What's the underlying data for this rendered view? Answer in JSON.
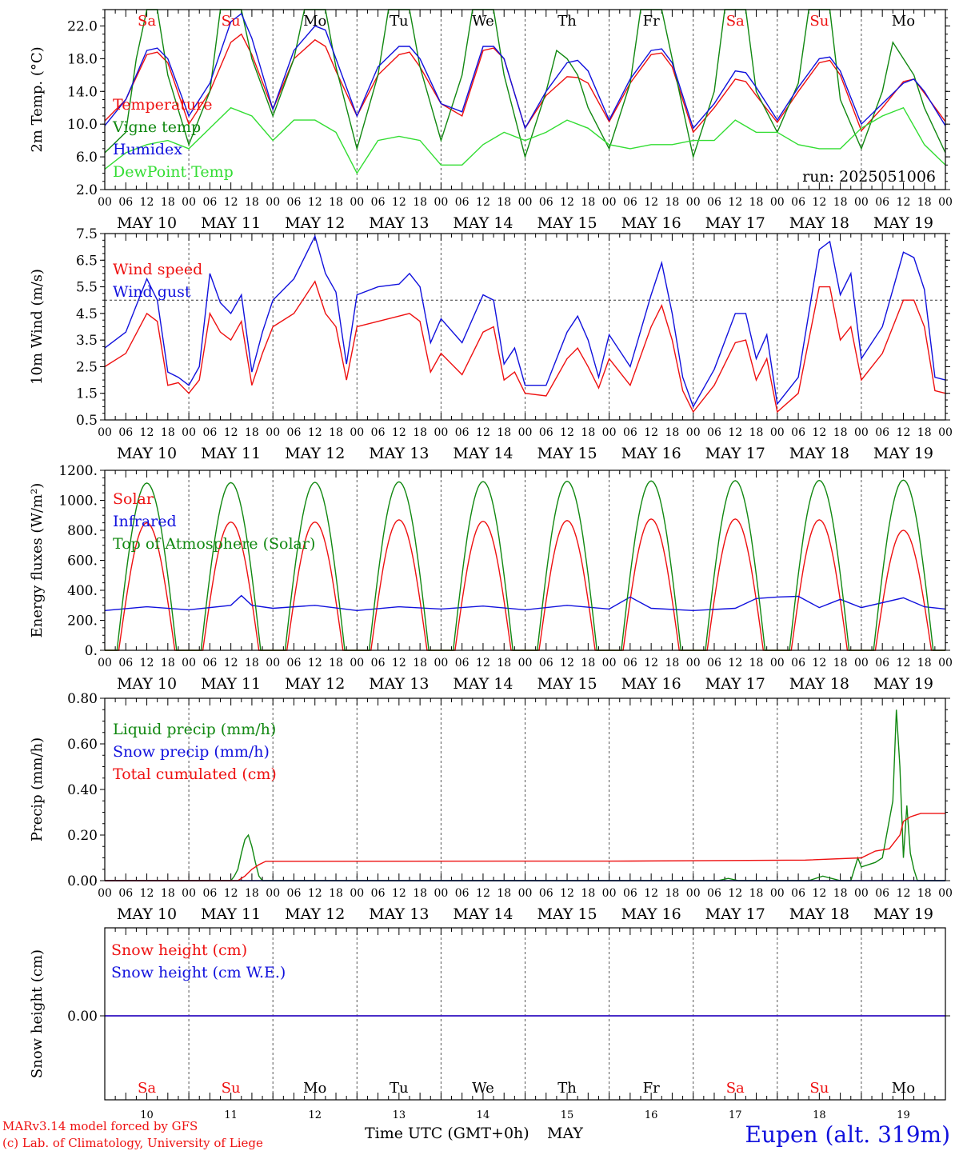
{
  "footer": {
    "model_line": "MARv3.14 model forced by GFS",
    "credit_line": "(c) Lab. of Climatology, University of Liege",
    "location": "Eupen (alt. 319m)",
    "time_axis_label": "Time UTC (GMT+0h)",
    "month_label": "MAY"
  },
  "colors": {
    "red": "#ee1111",
    "green": "#118811",
    "blue": "#1111dd",
    "lightgreen": "#33dd33",
    "black": "#000000"
  },
  "chart_data": [
    {
      "id": "temperature",
      "type": "line",
      "ylabel": "2m Temp. (°C)",
      "ylim": [
        2.0,
        24.0
      ],
      "yticks": [
        2.0,
        6.0,
        10.0,
        14.0,
        18.0,
        22.0
      ],
      "yticklabels": [
        "2.0",
        "6.0",
        "10.0",
        "14.0",
        "18.0",
        "22.0"
      ],
      "annotation": "run: 2025051006",
      "day_names": [
        "Sa",
        "Su",
        "Mo",
        "Tu",
        "We",
        "Th",
        "Fr",
        "Sa",
        "Su",
        "Mo"
      ],
      "series": [
        {
          "name": "Temperature",
          "color": "#ee1111",
          "x": [
            0,
            6,
            12,
            15,
            18,
            24,
            30,
            36,
            39,
            42,
            48,
            54,
            60,
            63,
            66,
            72,
            78,
            84,
            87,
            90,
            96,
            102,
            108,
            111,
            114,
            120,
            126,
            132,
            135,
            138,
            144,
            150,
            156,
            159,
            162,
            168,
            174,
            180,
            183,
            186,
            192,
            198,
            204,
            207,
            210,
            216,
            222,
            228,
            231,
            234,
            240
          ],
          "values": [
            10.4,
            13,
            18.5,
            18.8,
            17.5,
            10,
            14,
            20,
            21,
            18.5,
            11.8,
            18,
            20.3,
            19.5,
            16.5,
            11,
            16,
            18.5,
            18.8,
            17,
            12.5,
            11,
            19,
            19.3,
            18,
            9.5,
            13.5,
            15.8,
            15.7,
            15,
            10.3,
            15,
            18.5,
            18.7,
            17,
            9,
            12,
            15.5,
            15.2,
            13.5,
            10.2,
            14,
            17.5,
            17.8,
            16,
            9.2,
            12,
            15.2,
            15.5,
            13.8,
            10.3
          ]
        },
        {
          "name": "Vigne temp",
          "color": "#118811",
          "x": [
            0,
            6,
            9,
            12,
            15,
            18,
            24,
            30,
            33,
            36,
            39,
            42,
            48,
            54,
            57,
            60,
            63,
            66,
            72,
            78,
            81,
            84,
            87,
            90,
            96,
            102,
            105,
            108,
            111,
            114,
            120,
            126,
            129,
            132,
            135,
            138,
            144,
            150,
            153,
            156,
            159,
            162,
            168,
            174,
            177,
            180,
            183,
            186,
            192,
            198,
            201,
            204,
            207,
            210,
            216,
            222,
            225,
            228,
            231,
            234,
            240
          ],
          "values": [
            6.5,
            9,
            18,
            24,
            24,
            16,
            7.5,
            14,
            24,
            24,
            24,
            18,
            11,
            18,
            24,
            24,
            24,
            17,
            7,
            16,
            24,
            24,
            24,
            17,
            8,
            16,
            24,
            24,
            24,
            16,
            6,
            14,
            19,
            18,
            16,
            12,
            7,
            15,
            24,
            24,
            24,
            18,
            6,
            14,
            24,
            24,
            24,
            14,
            9,
            15,
            24,
            24,
            24,
            13,
            7,
            14,
            20,
            18,
            16,
            12,
            6.5
          ]
        },
        {
          "name": "Humidex",
          "color": "#1111dd",
          "x": [
            0,
            6,
            12,
            15,
            18,
            24,
            30,
            36,
            39,
            42,
            48,
            54,
            60,
            63,
            66,
            72,
            78,
            84,
            87,
            90,
            96,
            102,
            108,
            111,
            114,
            120,
            126,
            132,
            135,
            138,
            144,
            150,
            156,
            159,
            162,
            168,
            174,
            180,
            183,
            186,
            192,
            198,
            204,
            207,
            210,
            216,
            222,
            228,
            231,
            234,
            240
          ],
          "values": [
            9.8,
            13,
            19,
            19.3,
            18,
            11,
            15,
            22.5,
            23.5,
            20.5,
            11.8,
            19,
            22,
            21.5,
            18,
            11,
            17,
            19.5,
            19.5,
            18,
            12.5,
            11.5,
            19.5,
            19.5,
            18,
            9.5,
            14,
            17.5,
            17.8,
            16.5,
            10.5,
            15.5,
            19,
            19.2,
            17.5,
            9.5,
            12.5,
            16.5,
            16.3,
            14.5,
            10.5,
            14.5,
            18,
            18.2,
            16.5,
            10,
            12.5,
            15,
            15.5,
            14,
            9.8
          ]
        },
        {
          "name": "DewPoint Temp",
          "color": "#33dd33",
          "x": [
            0,
            6,
            12,
            18,
            24,
            30,
            36,
            42,
            48,
            54,
            60,
            66,
            72,
            78,
            84,
            90,
            96,
            102,
            108,
            114,
            120,
            126,
            132,
            138,
            144,
            150,
            156,
            162,
            168,
            174,
            180,
            186,
            192,
            198,
            204,
            210,
            216,
            222,
            228,
            234,
            240
          ],
          "values": [
            4.5,
            6.5,
            7.5,
            8,
            7,
            9.5,
            12,
            11,
            8,
            10.5,
            10.5,
            9,
            4,
            8,
            8.5,
            8,
            5,
            5,
            7.5,
            9,
            8,
            9,
            10.5,
            9.5,
            7.5,
            7,
            7.5,
            7.5,
            8,
            8,
            10.5,
            9,
            9,
            7.5,
            7,
            7,
            9.5,
            11,
            12,
            7.5,
            5
          ]
        }
      ]
    },
    {
      "id": "wind",
      "type": "line",
      "ylabel": "10m Wind (m/s)",
      "ylim": [
        0.5,
        7.5
      ],
      "yticks": [
        0.5,
        1.5,
        2.5,
        3.5,
        4.5,
        5.5,
        6.5,
        7.5
      ],
      "yticklabels": [
        "0.5",
        "1.5",
        "2.5",
        "3.5",
        "4.5",
        "5.5",
        "6.5",
        "7.5"
      ],
      "reference_line": 5.0,
      "series": [
        {
          "name": "Wind speed",
          "color": "#ee1111",
          "x": [
            0,
            6,
            12,
            15,
            18,
            21,
            24,
            27,
            30,
            33,
            36,
            39,
            42,
            45,
            48,
            54,
            60,
            63,
            66,
            69,
            72,
            78,
            84,
            87,
            90,
            93,
            96,
            102,
            108,
            111,
            114,
            117,
            120,
            126,
            132,
            135,
            138,
            141,
            144,
            150,
            156,
            159,
            162,
            165,
            168,
            174,
            180,
            183,
            186,
            189,
            192,
            198,
            204,
            207,
            210,
            213,
            216,
            222,
            228,
            231,
            234,
            237,
            240
          ],
          "values": [
            2.5,
            3.0,
            4.5,
            4.2,
            1.8,
            1.9,
            1.5,
            2.0,
            4.5,
            3.8,
            3.5,
            4.2,
            1.8,
            3.0,
            4.0,
            4.5,
            5.7,
            4.5,
            4.0,
            2.0,
            4.0,
            4.2,
            4.4,
            4.5,
            4.2,
            2.3,
            3.0,
            2.2,
            3.8,
            4.0,
            2.0,
            2.3,
            1.5,
            1.4,
            2.8,
            3.2,
            2.5,
            1.7,
            2.8,
            1.8,
            4.0,
            4.8,
            3.5,
            1.6,
            0.8,
            1.8,
            3.4,
            3.5,
            2.0,
            2.8,
            0.8,
            1.5,
            5.5,
            5.5,
            3.5,
            4.0,
            2.0,
            3.0,
            5.0,
            5.0,
            4.0,
            1.6,
            1.5
          ]
        },
        {
          "name": "Wind gust",
          "color": "#1111dd",
          "x": [
            0,
            6,
            12,
            15,
            18,
            21,
            24,
            27,
            30,
            33,
            36,
            39,
            42,
            45,
            48,
            54,
            60,
            63,
            66,
            69,
            72,
            78,
            84,
            87,
            90,
            93,
            96,
            102,
            108,
            111,
            114,
            117,
            120,
            126,
            132,
            135,
            138,
            141,
            144,
            150,
            156,
            159,
            162,
            165,
            168,
            174,
            180,
            183,
            186,
            189,
            192,
            198,
            204,
            207,
            210,
            213,
            216,
            222,
            228,
            231,
            234,
            237,
            240
          ],
          "values": [
            3.2,
            3.8,
            5.8,
            5.0,
            2.3,
            2.1,
            1.8,
            2.5,
            6.0,
            4.9,
            4.5,
            5.2,
            2.3,
            3.8,
            5.0,
            5.8,
            7.4,
            6.0,
            5.3,
            2.6,
            5.2,
            5.5,
            5.6,
            6.0,
            5.5,
            3.4,
            4.3,
            3.4,
            5.2,
            5.0,
            2.6,
            3.2,
            1.8,
            1.8,
            3.8,
            4.4,
            3.5,
            2.1,
            3.7,
            2.5,
            5.2,
            6.4,
            4.5,
            2.1,
            1.0,
            2.4,
            4.5,
            4.5,
            2.8,
            3.7,
            1.1,
            2.1,
            6.9,
            7.2,
            5.2,
            6.0,
            2.8,
            4.0,
            6.8,
            6.6,
            5.4,
            2.1,
            2.0
          ]
        }
      ]
    },
    {
      "id": "energy",
      "type": "line",
      "ylabel": "Energy fluxes (W/m²)",
      "ylim": [
        0,
        1200
      ],
      "yticks": [
        0,
        200,
        400,
        600,
        800,
        1000,
        1200
      ],
      "yticklabels": [
        "0.",
        "200.",
        "400.",
        "600.",
        "800.",
        "1000.",
        "1200."
      ],
      "series": [
        {
          "name": "Solar",
          "color": "#ee1111",
          "peak_hour_utc": 12,
          "daily_peak": [
            850,
            855,
            855,
            870,
            860,
            865,
            875,
            875,
            870,
            800
          ],
          "sunrise_hour": 4,
          "sunset_hour": 20
        },
        {
          "name": "Infrared",
          "color": "#1111dd",
          "x": [
            0,
            12,
            24,
            36,
            39,
            42,
            48,
            60,
            72,
            84,
            96,
            108,
            120,
            132,
            144,
            150,
            156,
            168,
            180,
            186,
            192,
            198,
            204,
            210,
            216,
            228,
            234,
            240
          ],
          "values": [
            265,
            290,
            270,
            300,
            365,
            300,
            280,
            300,
            265,
            290,
            275,
            295,
            270,
            300,
            275,
            355,
            280,
            265,
            280,
            345,
            355,
            360,
            285,
            340,
            285,
            350,
            290,
            275
          ]
        },
        {
          "name": "Top of Atmosphere (Solar)",
          "color": "#118811",
          "peak_hour_utc": 12,
          "daily_peak": [
            1115,
            1118,
            1120,
            1123,
            1125,
            1127,
            1129,
            1131,
            1133,
            1135
          ],
          "sunrise_hour": 3.5,
          "sunset_hour": 20.5
        }
      ]
    },
    {
      "id": "precip",
      "type": "line",
      "ylabel": "Precip (mm/h)",
      "ylim": [
        0.0,
        0.8
      ],
      "yticks": [
        0.0,
        0.2,
        0.4,
        0.6,
        0.8
      ],
      "yticklabels": [
        "0.00",
        "0.20",
        "0.40",
        "0.60",
        "0.80"
      ],
      "series": [
        {
          "name": "Liquid precip (mm/h)",
          "color": "#118811",
          "x": [
            0,
            36,
            37,
            38,
            39,
            40,
            41,
            42,
            43,
            44,
            45,
            150,
            175,
            178,
            181,
            182,
            201,
            205,
            210,
            213,
            215,
            216,
            220,
            222,
            225,
            226,
            227,
            228,
            229,
            230,
            231,
            232,
            235,
            240
          ],
          "values": [
            0,
            0,
            0.02,
            0.05,
            0.12,
            0.18,
            0.2,
            0.15,
            0.08,
            0.02,
            0,
            0,
            0,
            0.01,
            0,
            0,
            0,
            0.02,
            0,
            0,
            0.1,
            0.06,
            0.08,
            0.1,
            0.35,
            0.75,
            0.5,
            0.1,
            0.33,
            0.12,
            0.05,
            0,
            0,
            0
          ]
        },
        {
          "name": "Snow precip (mm/h)",
          "color": "#1111dd",
          "x": [
            0,
            240
          ],
          "values": [
            0,
            0
          ]
        },
        {
          "name": "Total cumulated (cm)",
          "color": "#ee1111",
          "x": [
            0,
            38,
            40,
            42,
            44,
            46,
            48,
            150,
            200,
            216,
            220,
            224,
            227,
            228,
            230,
            233,
            240
          ],
          "values": [
            0,
            0,
            0.02,
            0.05,
            0.07,
            0.085,
            0.085,
            0.086,
            0.09,
            0.1,
            0.13,
            0.14,
            0.2,
            0.26,
            0.28,
            0.295,
            0.295
          ]
        }
      ]
    },
    {
      "id": "snow",
      "type": "line",
      "ylabel": "Snow height (cm)",
      "yticks": [
        0.0
      ],
      "yticklabels": [
        "0.00"
      ],
      "series": [
        {
          "name": "Snow height (cm)",
          "color": "#ee1111",
          "x": [
            0,
            240
          ],
          "values": [
            0,
            0
          ]
        },
        {
          "name": "Snow height (cm W.E.)",
          "color": "#1111dd",
          "x": [
            0,
            240
          ],
          "values": [
            0,
            0
          ]
        }
      ]
    }
  ],
  "x_axis": {
    "hour_labels": [
      "00",
      "06",
      "12",
      "18"
    ],
    "last_hour_label": "00",
    "dates": [
      "MAY 10",
      "MAY 11",
      "MAY 12",
      "MAY 13",
      "MAY 14",
      "MAY 15",
      "MAY 16",
      "MAY 17",
      "MAY 18",
      "MAY 19"
    ],
    "day_numbers": [
      "10",
      "11",
      "12",
      "13",
      "14",
      "15",
      "16",
      "17",
      "18",
      "19"
    ],
    "day_names": [
      "Sa",
      "Su",
      "Mo",
      "Tu",
      "We",
      "Th",
      "Fr",
      "Sa",
      "Su",
      "Mo"
    ],
    "weekend_days": [
      0,
      1,
      7,
      8
    ]
  }
}
